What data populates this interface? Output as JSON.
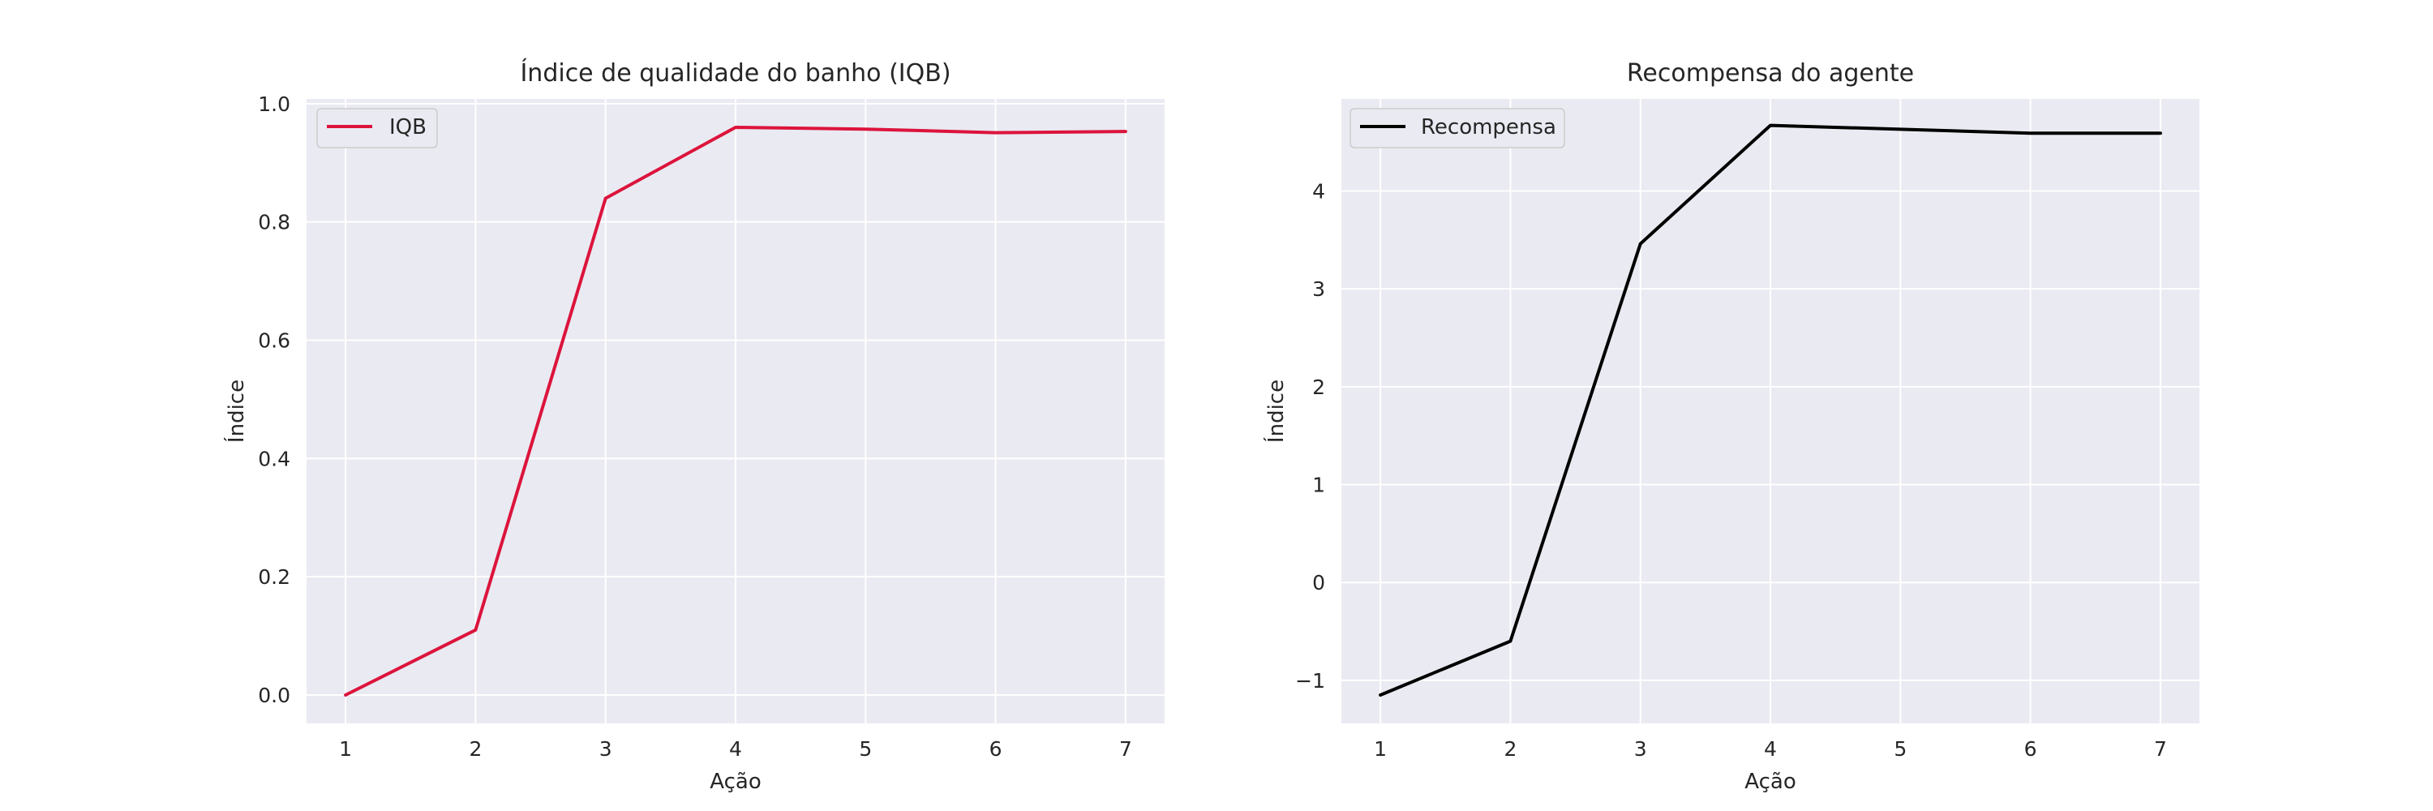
{
  "chart_data": [
    {
      "type": "line",
      "title": "Índice de qualidade do banho (IQB)",
      "xlabel": "Ação",
      "ylabel": "Índice",
      "x": [
        1,
        2,
        3,
        4,
        5,
        6,
        7
      ],
      "series": [
        {
          "name": "IQB",
          "color": "#dc143c",
          "values": [
            0.0,
            0.11,
            0.84,
            0.96,
            0.957,
            0.951,
            0.953
          ]
        }
      ],
      "xticks": [
        1,
        2,
        3,
        4,
        5,
        6,
        7
      ],
      "yticks": [
        0.0,
        0.2,
        0.4,
        0.6,
        0.8,
        1.0
      ],
      "ytick_labels": [
        "0.0",
        "0.2",
        "0.4",
        "0.6",
        "0.8",
        "1.0"
      ],
      "xlim": [
        0.7,
        7.3
      ],
      "ylim": [
        -0.048,
        1.008
      ],
      "grid": true,
      "legend": "upper left"
    },
    {
      "type": "line",
      "title": "Recompensa do agente",
      "xlabel": "Ação",
      "ylabel": "Índice",
      "x": [
        1,
        2,
        3,
        4,
        5,
        6,
        7
      ],
      "series": [
        {
          "name": "Recompensa",
          "color": "#000000",
          "values": [
            -1.15,
            -0.6,
            3.46,
            4.67,
            4.63,
            4.59,
            4.59
          ]
        }
      ],
      "xticks": [
        1,
        2,
        3,
        4,
        5,
        6,
        7
      ],
      "yticks": [
        -1,
        0,
        1,
        2,
        3,
        4
      ],
      "ytick_labels": [
        "−1",
        "0",
        "1",
        "2",
        "3",
        "4"
      ],
      "xlim": [
        0.7,
        7.3
      ],
      "ylim": [
        -1.44,
        4.94
      ],
      "grid": true,
      "legend": "upper left"
    }
  ]
}
